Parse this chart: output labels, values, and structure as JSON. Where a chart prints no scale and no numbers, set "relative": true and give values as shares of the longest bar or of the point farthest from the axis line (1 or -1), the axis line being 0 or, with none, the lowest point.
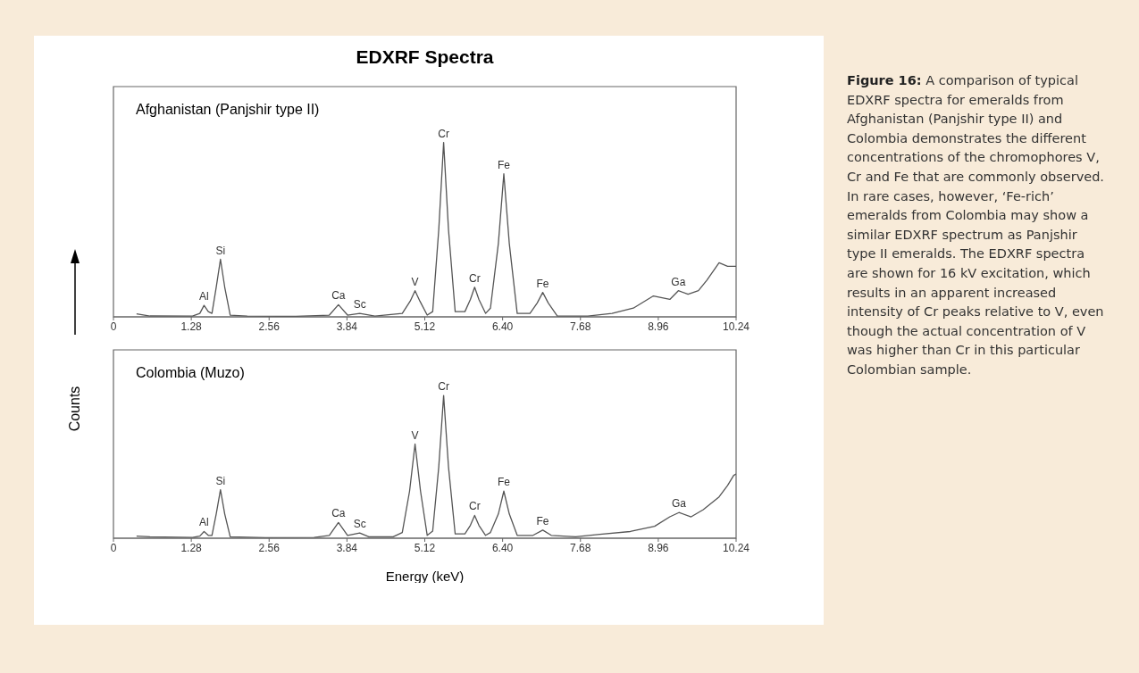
{
  "chart_data": [
    {
      "type": "line",
      "title": "EDXRF Spectra",
      "ylabel": "Counts",
      "relative": true,
      "legend": false,
      "marker": "none",
      "line_style": "solid",
      "xlim": [
        0,
        10.24
      ],
      "xticks": [
        0,
        1.28,
        2.56,
        3.84,
        5.12,
        {
          "value": 6.4,
          "label": "6.40"
        },
        7.68,
        8.96,
        10.24
      ],
      "series": [
        {
          "name": "Afghanistan (Panjshir type II)",
          "color": "#555555",
          "x": [
            0.38,
            0.6,
            1.3,
            1.42,
            1.49,
            1.56,
            1.62,
            1.69,
            1.76,
            1.83,
            1.92,
            2.2,
            3.0,
            3.55,
            3.7,
            3.85,
            4.05,
            4.3,
            4.75,
            4.88,
            4.96,
            5.04,
            5.16,
            5.25,
            5.35,
            5.43,
            5.51,
            5.62,
            5.78,
            5.87,
            5.94,
            6.01,
            6.12,
            6.2,
            6.33,
            6.42,
            6.51,
            6.64,
            6.85,
            6.97,
            7.06,
            7.15,
            7.3,
            7.8,
            8.2,
            8.55,
            8.88,
            9.15,
            9.29,
            9.45,
            9.62,
            9.76,
            9.96,
            10.1,
            10.24
          ],
          "values": [
            0.017,
            0.005,
            0.004,
            0.02,
            0.066,
            0.03,
            0.02,
            0.17,
            0.33,
            0.17,
            0.01,
            0.004,
            0.003,
            0.01,
            0.07,
            0.01,
            0.02,
            0.004,
            0.02,
            0.09,
            0.15,
            0.09,
            0.01,
            0.03,
            0.5,
            1.0,
            0.5,
            0.03,
            0.03,
            0.1,
            0.17,
            0.1,
            0.02,
            0.05,
            0.42,
            0.82,
            0.42,
            0.02,
            0.02,
            0.08,
            0.14,
            0.08,
            0.005,
            0.004,
            0.02,
            0.05,
            0.12,
            0.1,
            0.15,
            0.13,
            0.15,
            0.21,
            0.31,
            0.29,
            0.29
          ]
        }
      ],
      "annotations": [
        {
          "text": "Al",
          "x": 1.49,
          "y": 0.066
        },
        {
          "text": "Si",
          "x": 1.76,
          "y": 0.33
        },
        {
          "text": "Ca",
          "x": 3.7,
          "y": 0.07
        },
        {
          "text": "Sc",
          "x": 4.05,
          "y": 0.02
        },
        {
          "text": "V",
          "x": 4.96,
          "y": 0.15
        },
        {
          "text": "Cr",
          "x": 5.43,
          "y": 1.0
        },
        {
          "text": "Cr",
          "x": 5.94,
          "y": 0.17
        },
        {
          "text": "Fe",
          "x": 6.42,
          "y": 0.82
        },
        {
          "text": "Fe",
          "x": 7.06,
          "y": 0.14
        },
        {
          "text": "Ga",
          "x": 9.29,
          "y": 0.15
        },
        "Figure 16: A comparison of typical EDXRF spectra for emeralds from Afghanistan (Panjshir type II) and Colombia demonstrates the different concentrations of the chromophores V, Cr and Fe that are commonly observed. In rare cases, however, ‘Fe-rich’ emeralds from Colombia may show a similar EDXRF spectrum as Panjshir type II emeralds. The EDXRF spectra are shown for 16 kV excitation, which results in an apparent increased intensity of Cr peaks relative to V, even though the actual concentration of V was higher than Cr in this particular Colombian sample."
      ]
    },
    {
      "type": "line",
      "xlabel": "Energy (keV)",
      "relative": true,
      "legend": false,
      "marker": "none",
      "line_style": "solid",
      "xlim": [
        0,
        10.24
      ],
      "xticks": [
        0,
        1.28,
        2.56,
        3.84,
        5.12,
        {
          "value": 6.4,
          "label": "6.40"
        },
        7.68,
        8.96,
        10.24
      ],
      "series": [
        {
          "name": "Colombia (Muzo)",
          "color": "#555555",
          "x": [
            0.38,
            0.6,
            1.3,
            1.42,
            1.49,
            1.56,
            1.62,
            1.69,
            1.76,
            1.83,
            1.92,
            2.5,
            3.3,
            3.55,
            3.7,
            3.85,
            4.05,
            4.2,
            4.6,
            4.75,
            4.87,
            4.96,
            5.05,
            5.16,
            5.25,
            5.35,
            5.43,
            5.51,
            5.62,
            5.78,
            5.87,
            5.94,
            6.01,
            6.12,
            6.2,
            6.33,
            6.42,
            6.51,
            6.64,
            6.9,
            7.06,
            7.2,
            7.6,
            8.0,
            8.5,
            8.9,
            9.15,
            9.3,
            9.5,
            9.7,
            9.96,
            10.1,
            10.2,
            10.24
          ],
          "values": [
            0.015,
            0.01,
            0.005,
            0.015,
            0.047,
            0.02,
            0.02,
            0.17,
            0.34,
            0.17,
            0.01,
            0.004,
            0.006,
            0.02,
            0.11,
            0.02,
            0.037,
            0.01,
            0.01,
            0.04,
            0.33,
            0.66,
            0.33,
            0.02,
            0.05,
            0.5,
            1.0,
            0.5,
            0.03,
            0.03,
            0.09,
            0.16,
            0.09,
            0.02,
            0.04,
            0.17,
            0.33,
            0.17,
            0.02,
            0.02,
            0.057,
            0.02,
            0.01,
            0.027,
            0.047,
            0.084,
            0.15,
            0.18,
            0.15,
            0.2,
            0.29,
            0.37,
            0.44,
            0.45
          ]
        }
      ],
      "annotations": [
        {
          "text": "Al",
          "x": 1.49,
          "y": 0.047
        },
        {
          "text": "Si",
          "x": 1.76,
          "y": 0.34
        },
        {
          "text": "Ca",
          "x": 3.7,
          "y": 0.11
        },
        {
          "text": "Sc",
          "x": 4.05,
          "y": 0.037
        },
        {
          "text": "V",
          "x": 4.96,
          "y": 0.66
        },
        {
          "text": "Cr",
          "x": 5.43,
          "y": 1.0
        },
        {
          "text": "Cr",
          "x": 5.94,
          "y": 0.16
        },
        {
          "text": "Fe",
          "x": 6.42,
          "y": 0.33
        },
        {
          "text": "Fe",
          "x": 7.06,
          "y": 0.057
        },
        {
          "text": "Ga",
          "x": 9.3,
          "y": 0.18
        }
      ]
    }
  ]
}
